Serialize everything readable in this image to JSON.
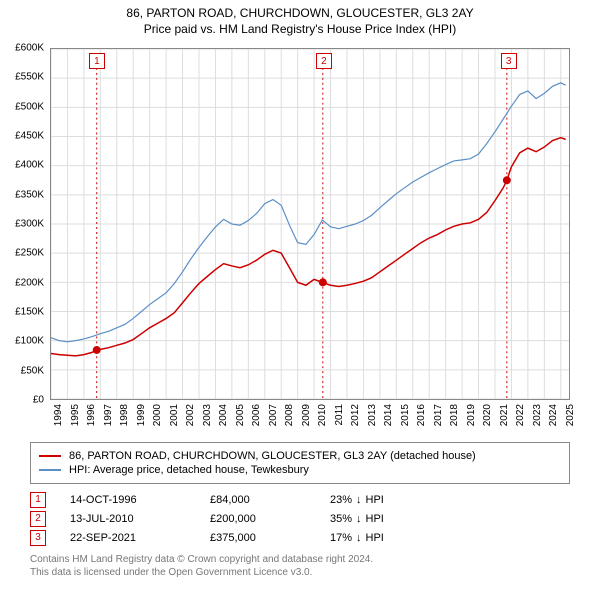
{
  "title_line1": "86, PARTON ROAD, CHURCHDOWN, GLOUCESTER, GL3 2AY",
  "title_line2": "Price paid vs. HM Land Registry's House Price Index (HPI)",
  "chart": {
    "type": "line",
    "background_color": "#ffffff",
    "grid_color": "#dddddd",
    "border_color": "#888888",
    "xlim": [
      1994,
      2025.5
    ],
    "ylim": [
      0,
      600000
    ],
    "y_ticks": [
      0,
      50000,
      100000,
      150000,
      200000,
      250000,
      300000,
      350000,
      400000,
      450000,
      500000,
      550000,
      600000
    ],
    "y_tick_labels": [
      "£0",
      "£50K",
      "£100K",
      "£150K",
      "£200K",
      "£250K",
      "£300K",
      "£350K",
      "£400K",
      "£450K",
      "£500K",
      "£550K",
      "£600K"
    ],
    "x_years": [
      1994,
      1995,
      1996,
      1997,
      1998,
      1999,
      2000,
      2001,
      2002,
      2003,
      2004,
      2005,
      2006,
      2007,
      2008,
      2009,
      2010,
      2011,
      2012,
      2013,
      2014,
      2015,
      2016,
      2017,
      2018,
      2019,
      2020,
      2021,
      2022,
      2023,
      2024,
      2025
    ],
    "axis_fontsize": 10,
    "series": [
      {
        "name": "price_paid",
        "label": "86, PARTON ROAD, CHURCHDOWN, GLOUCESTER, GL3 2AY (detached house)",
        "color": "#cc0000",
        "line_width": 1.5,
        "data": [
          [
            1994.0,
            78000
          ],
          [
            1994.5,
            76000
          ],
          [
            1995.0,
            75000
          ],
          [
            1995.5,
            74000
          ],
          [
            1996.0,
            76000
          ],
          [
            1996.5,
            80000
          ],
          [
            1996.78,
            84000
          ],
          [
            1997.0,
            85000
          ],
          [
            1997.5,
            88000
          ],
          [
            1998.0,
            92000
          ],
          [
            1998.5,
            96000
          ],
          [
            1999.0,
            102000
          ],
          [
            1999.5,
            112000
          ],
          [
            2000.0,
            122000
          ],
          [
            2000.5,
            130000
          ],
          [
            2001.0,
            138000
          ],
          [
            2001.5,
            148000
          ],
          [
            2002.0,
            165000
          ],
          [
            2002.5,
            182000
          ],
          [
            2003.0,
            198000
          ],
          [
            2003.5,
            210000
          ],
          [
            2004.0,
            222000
          ],
          [
            2004.5,
            232000
          ],
          [
            2005.0,
            228000
          ],
          [
            2005.5,
            225000
          ],
          [
            2006.0,
            230000
          ],
          [
            2006.5,
            238000
          ],
          [
            2007.0,
            248000
          ],
          [
            2007.5,
            255000
          ],
          [
            2008.0,
            250000
          ],
          [
            2008.5,
            225000
          ],
          [
            2009.0,
            200000
          ],
          [
            2009.5,
            195000
          ],
          [
            2010.0,
            205000
          ],
          [
            2010.5,
            200000
          ],
          [
            2011.0,
            195000
          ],
          [
            2011.5,
            193000
          ],
          [
            2012.0,
            195000
          ],
          [
            2012.5,
            198000
          ],
          [
            2013.0,
            202000
          ],
          [
            2013.5,
            208000
          ],
          [
            2014.0,
            218000
          ],
          [
            2014.5,
            228000
          ],
          [
            2015.0,
            238000
          ],
          [
            2015.5,
            248000
          ],
          [
            2016.0,
            258000
          ],
          [
            2016.5,
            268000
          ],
          [
            2017.0,
            276000
          ],
          [
            2017.5,
            282000
          ],
          [
            2018.0,
            290000
          ],
          [
            2018.5,
            296000
          ],
          [
            2019.0,
            300000
          ],
          [
            2019.5,
            302000
          ],
          [
            2020.0,
            308000
          ],
          [
            2020.5,
            320000
          ],
          [
            2021.0,
            340000
          ],
          [
            2021.5,
            362000
          ],
          [
            2021.72,
            375000
          ],
          [
            2022.0,
            398000
          ],
          [
            2022.5,
            422000
          ],
          [
            2023.0,
            430000
          ],
          [
            2023.5,
            424000
          ],
          [
            2024.0,
            432000
          ],
          [
            2024.5,
            443000
          ],
          [
            2025.0,
            448000
          ],
          [
            2025.3,
            445000
          ]
        ]
      },
      {
        "name": "hpi",
        "label": "HPI: Average price, detached house, Tewkesbury",
        "color": "#5b8fc7",
        "line_width": 1.2,
        "data": [
          [
            1994.0,
            105000
          ],
          [
            1994.5,
            100000
          ],
          [
            1995.0,
            98000
          ],
          [
            1995.5,
            100000
          ],
          [
            1996.0,
            103000
          ],
          [
            1996.5,
            107000
          ],
          [
            1997.0,
            112000
          ],
          [
            1997.5,
            116000
          ],
          [
            1998.0,
            122000
          ],
          [
            1998.5,
            128000
          ],
          [
            1999.0,
            138000
          ],
          [
            1999.5,
            150000
          ],
          [
            2000.0,
            162000
          ],
          [
            2000.5,
            172000
          ],
          [
            2001.0,
            182000
          ],
          [
            2001.5,
            198000
          ],
          [
            2002.0,
            218000
          ],
          [
            2002.5,
            240000
          ],
          [
            2003.0,
            260000
          ],
          [
            2003.5,
            278000
          ],
          [
            2004.0,
            295000
          ],
          [
            2004.5,
            308000
          ],
          [
            2005.0,
            300000
          ],
          [
            2005.5,
            298000
          ],
          [
            2006.0,
            306000
          ],
          [
            2006.5,
            318000
          ],
          [
            2007.0,
            335000
          ],
          [
            2007.5,
            342000
          ],
          [
            2008.0,
            332000
          ],
          [
            2008.5,
            298000
          ],
          [
            2009.0,
            268000
          ],
          [
            2009.5,
            265000
          ],
          [
            2010.0,
            282000
          ],
          [
            2010.5,
            307000
          ],
          [
            2011.0,
            295000
          ],
          [
            2011.5,
            292000
          ],
          [
            2012.0,
            296000
          ],
          [
            2012.5,
            300000
          ],
          [
            2013.0,
            306000
          ],
          [
            2013.5,
            315000
          ],
          [
            2014.0,
            328000
          ],
          [
            2014.5,
            340000
          ],
          [
            2015.0,
            352000
          ],
          [
            2015.5,
            362000
          ],
          [
            2016.0,
            372000
          ],
          [
            2016.5,
            380000
          ],
          [
            2017.0,
            388000
          ],
          [
            2017.5,
            395000
          ],
          [
            2018.0,
            402000
          ],
          [
            2018.5,
            408000
          ],
          [
            2019.0,
            410000
          ],
          [
            2019.5,
            412000
          ],
          [
            2020.0,
            420000
          ],
          [
            2020.5,
            438000
          ],
          [
            2021.0,
            458000
          ],
          [
            2021.5,
            480000
          ],
          [
            2022.0,
            502000
          ],
          [
            2022.5,
            522000
          ],
          [
            2023.0,
            528000
          ],
          [
            2023.5,
            515000
          ],
          [
            2024.0,
            524000
          ],
          [
            2024.5,
            536000
          ],
          [
            2025.0,
            542000
          ],
          [
            2025.3,
            538000
          ]
        ]
      }
    ],
    "sale_points": [
      {
        "x": 1996.78,
        "y": 84000,
        "color": "#cc0000",
        "r": 4
      },
      {
        "x": 2010.53,
        "y": 200000,
        "color": "#cc0000",
        "r": 4
      },
      {
        "x": 2021.72,
        "y": 375000,
        "color": "#cc0000",
        "r": 4
      }
    ],
    "annotations": [
      {
        "num": "1",
        "x": 1996.78,
        "line_color": "#cc0000"
      },
      {
        "num": "2",
        "x": 2010.53,
        "line_color": "#cc0000"
      },
      {
        "num": "3",
        "x": 2021.72,
        "line_color": "#cc0000"
      }
    ]
  },
  "legend": {
    "items": [
      {
        "color": "#cc0000",
        "label": "86, PARTON ROAD, CHURCHDOWN, GLOUCESTER, GL3 2AY (detached house)"
      },
      {
        "color": "#5b8fc7",
        "label": "HPI: Average price, detached house, Tewkesbury"
      }
    ]
  },
  "markers": [
    {
      "num": "1",
      "date": "14-OCT-1996",
      "price": "£84,000",
      "pct": "23%",
      "arrow": "↓",
      "suffix": "HPI"
    },
    {
      "num": "2",
      "date": "13-JUL-2010",
      "price": "£200,000",
      "pct": "35%",
      "arrow": "↓",
      "suffix": "HPI"
    },
    {
      "num": "3",
      "date": "22-SEP-2021",
      "price": "£375,000",
      "pct": "17%",
      "arrow": "↓",
      "suffix": "HPI"
    }
  ],
  "footer_line1": "Contains HM Land Registry data © Crown copyright and database right 2024.",
  "footer_line2": "This data is licensed under the Open Government Licence v3.0."
}
